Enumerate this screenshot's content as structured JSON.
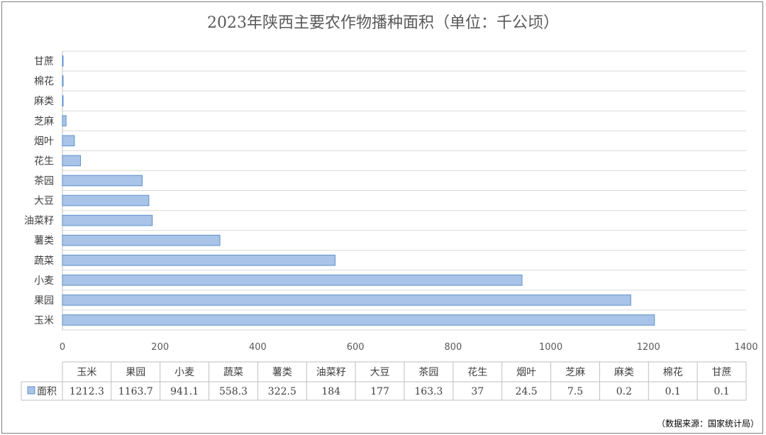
{
  "chart_data": {
    "type": "bar",
    "orientation": "horizontal",
    "title": "2023年陕西主要农作物播种面积（单位：千公顷）",
    "categories": [
      "玉米",
      "果园",
      "小麦",
      "蔬菜",
      "薯类",
      "油菜籽",
      "大豆",
      "茶园",
      "花生",
      "烟叶",
      "芝麻",
      "麻类",
      "棉花",
      "甘蔗"
    ],
    "series": [
      {
        "name": "面积",
        "values": [
          1212.3,
          1163.7,
          941.1,
          558.3,
          322.5,
          184,
          177,
          163.3,
          37,
          24.5,
          7.5,
          0.2,
          0.1,
          0.1
        ]
      }
    ],
    "value_labels": [
      "1212.3",
      "1163.7",
      "941.1",
      "558.3",
      "322.5",
      "184",
      "177",
      "163.3",
      "37",
      "24.5",
      "7.5",
      "0.2",
      "0.1",
      "0.1"
    ],
    "xlim": [
      0,
      1400
    ],
    "x_ticks": [
      "0",
      "200",
      "400",
      "600",
      "800",
      "1000",
      "1200",
      "1400"
    ],
    "grid": true,
    "data_table": true,
    "bar_fill": "#a9c4e8",
    "bar_stroke": "#5b8fc9"
  },
  "source": "（数据来源：国家统计局）"
}
